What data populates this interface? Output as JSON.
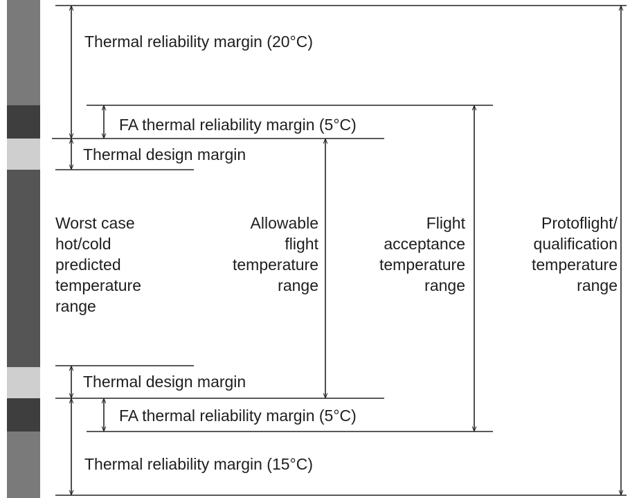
{
  "labels": {
    "top_reliability": "Thermal reliability margin (20°C)",
    "top_fa": "FA thermal reliability margin (5°C)",
    "top_design": "Thermal design margin",
    "bottom_design": "Thermal design margin",
    "bottom_fa": "FA thermal reliability margin (5°C)",
    "bottom_reliability": "Thermal reliability margin (15°C)",
    "worst_case": [
      "Worst case",
      "hot/cold",
      "predicted",
      "temperature",
      "range"
    ],
    "allowable": [
      "Allowable",
      "flight",
      "temperature",
      "range"
    ],
    "flight_acceptance": [
      "Flight",
      "acceptance",
      "temperature",
      "range"
    ],
    "protoflight": [
      "Protoflight/",
      "qualification",
      "temperature",
      "range"
    ]
  }
}
